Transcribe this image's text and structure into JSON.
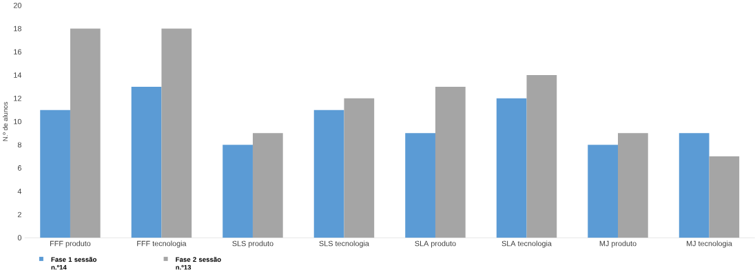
{
  "chart_data": {
    "type": "bar",
    "ylabel": "N.º de alunos",
    "categories": [
      "FFF produto",
      "FFF tecnologia",
      "SLS produto",
      "SLS tecnologia",
      "SLA produto",
      "SLA tecnologia",
      "MJ produto",
      "MJ tecnologia"
    ],
    "series": [
      {
        "name": "Fase 1 sessão n.º14",
        "color": "#5b9bd5",
        "values": [
          11,
          13,
          8,
          11,
          9,
          12,
          8,
          9
        ]
      },
      {
        "name": "Fase 2 sessão n.º13",
        "color": "#a5a5a5",
        "values": [
          18,
          18,
          9,
          12,
          13,
          14,
          9,
          7
        ]
      }
    ],
    "ylim": [
      0,
      20
    ],
    "yticks": [
      0,
      2,
      4,
      6,
      8,
      10,
      12,
      14,
      16,
      18,
      20
    ],
    "grid": false,
    "legend": "bottom left"
  }
}
